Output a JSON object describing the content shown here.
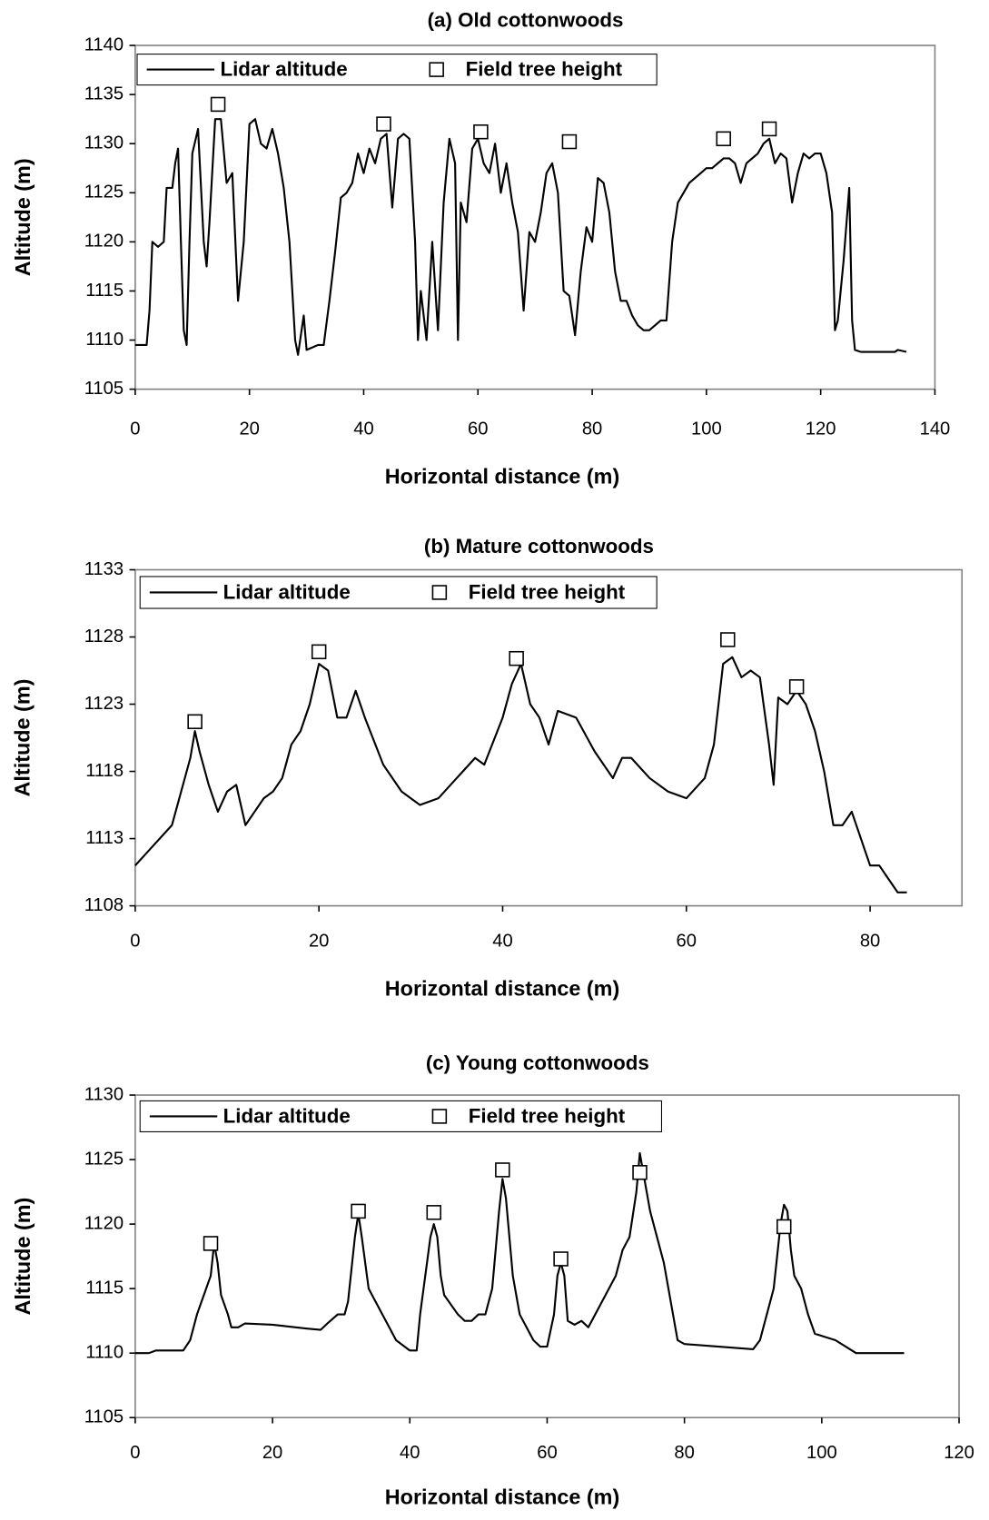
{
  "chart_data": [
    {
      "type": "line",
      "title": "(a) Old cottonwoods",
      "x_label": "Horizontal distance (m)",
      "y_label": "Altitude (m)",
      "xlim": [
        0,
        140
      ],
      "xticks": [
        0,
        20,
        40,
        60,
        80,
        100,
        120,
        140
      ],
      "ylim": [
        1105,
        1140
      ],
      "yticks": [
        1105,
        1110,
        1115,
        1120,
        1125,
        1130,
        1135,
        1140
      ],
      "series": [
        {
          "name": "Lidar altitude",
          "color": "#000000",
          "x": [
            0,
            2,
            2.5,
            3,
            4,
            5,
            5.5,
            6.5,
            7,
            7.5,
            8,
            8.5,
            9,
            9.5,
            10,
            11,
            12,
            12.5,
            13,
            14,
            15,
            16,
            17,
            18,
            19,
            20,
            21,
            22,
            23,
            24,
            25,
            26,
            27,
            28,
            28.5,
            29.5,
            30,
            32,
            33,
            34,
            35,
            36,
            37,
            38,
            39,
            40,
            41,
            42,
            43,
            44,
            45,
            46,
            47,
            48,
            49,
            49.5,
            50,
            51,
            52,
            53,
            54,
            55,
            56,
            56.5,
            57,
            58,
            59,
            60,
            61,
            62,
            63,
            64,
            65,
            66,
            67,
            68,
            69,
            70,
            71,
            72,
            73,
            74,
            75,
            76,
            77,
            78,
            79,
            80,
            81,
            82,
            83,
            84,
            85,
            86,
            87,
            88,
            89,
            90,
            91,
            92,
            93,
            94,
            95,
            96,
            97,
            98,
            99,
            100,
            101,
            102,
            103,
            104,
            105,
            106,
            107,
            108,
            109,
            110,
            111,
            112,
            113,
            114,
            115,
            116,
            117,
            118,
            119,
            120,
            121,
            122,
            122.5,
            123,
            124,
            125,
            125.5,
            126,
            127,
            130,
            133,
            133.5,
            135
          ],
          "values": [
            1109.5,
            1109.5,
            1113,
            1120,
            1119.5,
            1120,
            1125.5,
            1125.5,
            1128,
            1129.5,
            1120,
            1111,
            1109.5,
            1120,
            1129,
            1131.5,
            1120,
            1117.5,
            1122,
            1132.5,
            1132.5,
            1126,
            1127,
            1114,
            1120,
            1132,
            1132.5,
            1130,
            1129.5,
            1131.5,
            1129,
            1125.5,
            1120,
            1110,
            1108.5,
            1112.5,
            1109,
            1109.5,
            1109.5,
            1114,
            1119,
            1124.5,
            1125,
            1126,
            1129,
            1127,
            1129.5,
            1128,
            1130.5,
            1131,
            1123.5,
            1130.5,
            1131,
            1130.5,
            1120,
            1110,
            1115,
            1110,
            1120,
            1111,
            1124,
            1130.5,
            1128,
            1110,
            1124,
            1122,
            1129.5,
            1130.5,
            1128,
            1127,
            1130,
            1125,
            1128,
            1124,
            1121,
            1113,
            1121,
            1120,
            1123,
            1127,
            1128,
            1125,
            1115,
            1114.5,
            1110.5,
            1117,
            1121.5,
            1120,
            1126.5,
            1126,
            1123,
            1117,
            1114,
            1114,
            1112.5,
            1111.5,
            1111,
            1111,
            1111.5,
            1112,
            1112,
            1120,
            1124,
            1125,
            1126,
            1126.5,
            1127,
            1127.5,
            1127.5,
            1128,
            1128.5,
            1128.5,
            1128,
            1126,
            1128,
            1128.5,
            1129,
            1130,
            1130.5,
            1128,
            1129,
            1128.5,
            1124,
            1127,
            1129,
            1128.5,
            1129,
            1129,
            1127,
            1123,
            1111,
            1112,
            1118,
            1125.5,
            1112,
            1109,
            1108.8,
            1108.8,
            1108.8,
            1109,
            1108.8
          ]
        },
        {
          "name": "Field tree height",
          "color": "#000000",
          "marker": "square",
          "x": [
            14.5,
            43.5,
            60.5,
            76,
            103,
            111
          ],
          "values": [
            1134,
            1132,
            1131.2,
            1130.2,
            1130.5,
            1131.5
          ]
        }
      ]
    },
    {
      "type": "line",
      "title": "(b) Mature cottonwoods",
      "x_label": "Horizontal distance (m)",
      "y_label": "Altitude (m)",
      "xlim": [
        0,
        90
      ],
      "xticks": [
        0,
        20,
        40,
        60,
        80
      ],
      "ylim": [
        1108,
        1133
      ],
      "yticks": [
        1108,
        1113,
        1118,
        1123,
        1128,
        1133
      ],
      "series": [
        {
          "name": "Lidar altitude",
          "color": "#000000",
          "x": [
            0,
            2,
            4,
            5,
            6,
            6.5,
            7,
            8,
            9,
            10,
            11,
            12,
            13,
            14,
            15,
            16,
            17,
            18,
            19,
            20,
            21,
            22,
            23,
            24,
            25,
            27,
            29,
            31,
            33,
            35,
            37,
            38,
            40,
            41,
            42,
            43,
            44,
            45,
            46,
            48,
            50,
            52,
            53,
            54,
            56,
            58,
            60,
            62,
            63,
            64,
            65,
            66,
            67,
            68,
            69,
            69.5,
            70,
            71,
            72,
            73,
            74,
            75,
            76,
            77,
            78,
            79,
            80,
            81,
            82,
            83,
            84
          ],
          "values": [
            1111,
            1112.5,
            1114,
            1116.5,
            1119,
            1121,
            1119.5,
            1117,
            1115,
            1116.5,
            1117,
            1114,
            1115,
            1116,
            1116.5,
            1117.5,
            1120,
            1121,
            1123,
            1126,
            1125.5,
            1122,
            1122,
            1124,
            1122,
            1118.5,
            1116.5,
            1115.5,
            1116,
            1117.5,
            1119,
            1118.5,
            1122,
            1124.5,
            1126,
            1123,
            1122,
            1120,
            1122.5,
            1122,
            1119.5,
            1117.5,
            1119,
            1119,
            1117.5,
            1116.5,
            1116,
            1117.5,
            1120,
            1126,
            1126.5,
            1125,
            1125.5,
            1125,
            1120,
            1117,
            1123.5,
            1123,
            1124,
            1123,
            1121,
            1118,
            1114,
            1114,
            1115,
            1113,
            1111,
            1111,
            1110,
            1109,
            1109
          ]
        },
        {
          "name": "Field tree height",
          "color": "#000000",
          "marker": "square",
          "x": [
            6.5,
            20,
            41.5,
            64.5,
            72
          ],
          "values": [
            1121.7,
            1126.9,
            1126.4,
            1127.8,
            1124.3
          ]
        }
      ]
    },
    {
      "type": "line",
      "title": "(c) Young cottonwoods",
      "x_label": "Horizontal distance (m)",
      "y_label": "Altitude (m)",
      "xlim": [
        0,
        120
      ],
      "xticks": [
        0,
        20,
        40,
        60,
        80,
        100,
        120
      ],
      "ylim": [
        1105,
        1130
      ],
      "yticks": [
        1105,
        1110,
        1115,
        1120,
        1125,
        1130
      ],
      "series": [
        {
          "name": "Lidar altitude",
          "color": "#000000",
          "x": [
            0,
            2,
            3,
            7,
            8,
            9,
            10,
            11,
            11.5,
            12,
            12.5,
            13.5,
            14,
            15,
            16,
            20,
            25,
            27,
            28,
            29.5,
            30.5,
            31,
            32,
            32.5,
            33,
            34,
            35,
            36,
            37,
            38,
            40,
            41,
            41.5,
            42,
            43,
            43.5,
            44,
            44.5,
            45,
            47,
            48,
            49,
            50,
            51,
            52,
            53,
            53.5,
            54,
            55,
            56,
            57,
            58,
            59,
            60,
            61,
            61.5,
            62,
            62.5,
            63,
            64,
            65,
            66,
            67,
            68,
            70,
            71,
            72,
            73,
            73.5,
            74,
            75,
            76,
            77,
            78,
            79,
            80,
            85,
            90,
            91,
            92,
            93,
            94,
            94.5,
            95,
            95.5,
            96,
            97,
            98,
            99,
            102,
            105,
            112
          ],
          "values": [
            1110,
            1110,
            1110.2,
            1110.2,
            1111,
            1113,
            1114.5,
            1116,
            1118.5,
            1117,
            1114.5,
            1113,
            1112,
            1112,
            1112.3,
            1112.2,
            1111.9,
            1111.8,
            1112.3,
            1113,
            1113,
            1114,
            1119,
            1120.8,
            1119,
            1115,
            1114,
            1113,
            1112,
            1111,
            1110.2,
            1110.2,
            1113,
            1115,
            1119,
            1120,
            1119,
            1116,
            1114.5,
            1113,
            1112.5,
            1112.5,
            1113,
            1113,
            1115,
            1121,
            1123.5,
            1122,
            1116,
            1113,
            1112,
            1111,
            1110.5,
            1110.5,
            1113,
            1116,
            1117,
            1116,
            1112.5,
            1112.2,
            1112.5,
            1112,
            1113,
            1114,
            1116,
            1118,
            1119,
            1122.5,
            1125.5,
            1124,
            1121,
            1119,
            1117,
            1114,
            1111,
            1110.7,
            1110.5,
            1110.3,
            1111,
            1113,
            1115,
            1120,
            1121.5,
            1121,
            1118,
            1116,
            1115,
            1113,
            1111.5,
            1111,
            1110,
            1110
          ]
        },
        {
          "name": "Field tree height",
          "color": "#000000",
          "marker": "square",
          "x": [
            11,
            32.5,
            43.5,
            53.5,
            62,
            73.5,
            94.5
          ],
          "values": [
            1118.5,
            1121,
            1120.9,
            1124.2,
            1117.3,
            1124,
            1119.8
          ]
        }
      ]
    }
  ]
}
